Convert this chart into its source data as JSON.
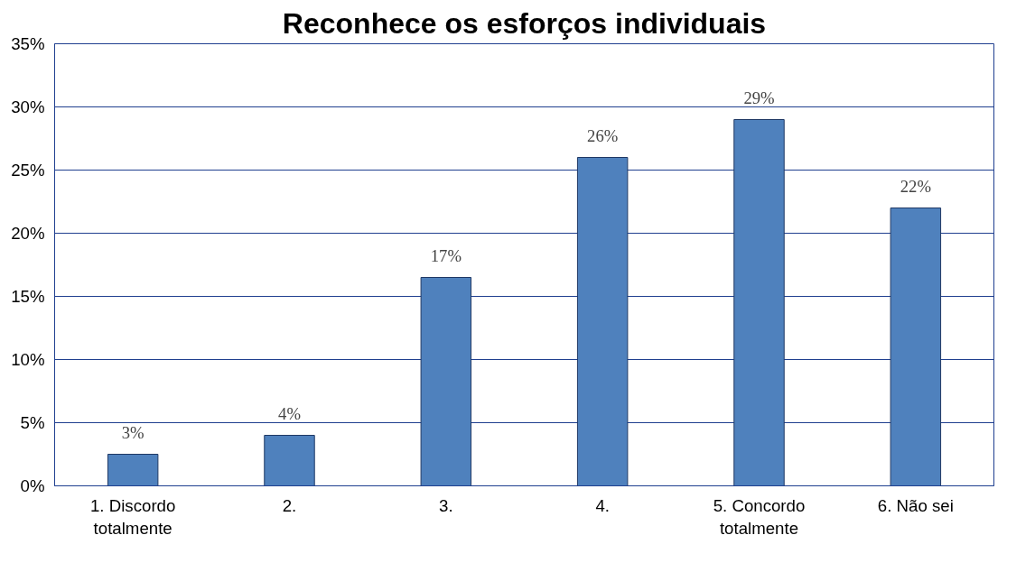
{
  "chart_data": {
    "type": "bar",
    "title": "Reconhece os esforços individuais",
    "categories": [
      "1. Discordo totalmente",
      "2.",
      "3.",
      "4.",
      "5. Concordo totalmente",
      "6. Não sei"
    ],
    "values": [
      2.5,
      4,
      16.5,
      26,
      29,
      22
    ],
    "value_labels": [
      "3%",
      "4%",
      "17%",
      "26%",
      "29%",
      "22%"
    ],
    "color": "#4f81bd",
    "ylim": [
      0,
      35
    ],
    "yticks": [
      {
        "value": 0,
        "label": "0%"
      },
      {
        "value": 5,
        "label": "5%"
      },
      {
        "value": 10,
        "label": "10%"
      },
      {
        "value": 15,
        "label": "15%"
      },
      {
        "value": 20,
        "label": "20%"
      },
      {
        "value": 25,
        "label": "25%"
      },
      {
        "value": 30,
        "label": "30%"
      },
      {
        "value": 35,
        "label": "35%"
      }
    ],
    "grid": "y"
  }
}
